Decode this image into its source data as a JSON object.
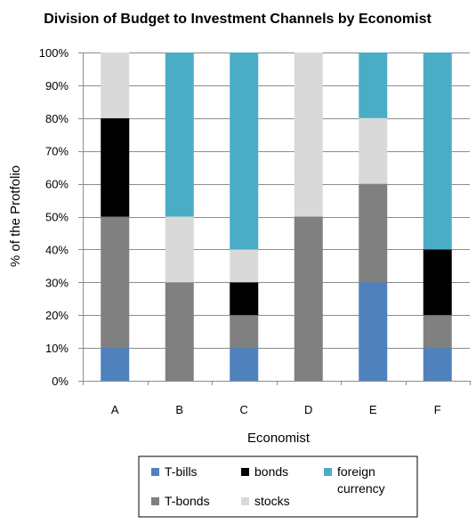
{
  "chart_data": {
    "type": "bar",
    "stacked": true,
    "title": "Division of Budget to Investment Channels by Economist",
    "xlabel": "Economist",
    "ylabel": "% of the Protfolio",
    "ylim": [
      0,
      100
    ],
    "yticks": [
      "0%",
      "10%",
      "20%",
      "30%",
      "40%",
      "50%",
      "60%",
      "70%",
      "80%",
      "90%",
      "100%"
    ],
    "grid": true,
    "legend_position": "bottom",
    "categories": [
      "A",
      "B",
      "C",
      "D",
      "E",
      "F"
    ],
    "series": [
      {
        "name": "T-bills",
        "color": "#4F81BD",
        "values": [
          10,
          0,
          10,
          0,
          30,
          10
        ]
      },
      {
        "name": "T-bonds",
        "color": "#808080",
        "values": [
          40,
          30,
          10,
          50,
          30,
          10
        ]
      },
      {
        "name": "bonds",
        "color": "#000000",
        "values": [
          30,
          0,
          10,
          0,
          0,
          20
        ]
      },
      {
        "name": "stocks",
        "color": "#D9D9D9",
        "values": [
          20,
          20,
          10,
          50,
          20,
          0
        ]
      },
      {
        "name": "foreign currency",
        "color": "#4BACC6",
        "values": [
          0,
          50,
          60,
          0,
          20,
          60
        ]
      }
    ],
    "legend": [
      {
        "series": 0,
        "lines": [
          "T-bills"
        ]
      },
      {
        "series": 2,
        "lines": [
          "bonds"
        ]
      },
      {
        "series": 4,
        "lines": [
          "foreign",
          "currency"
        ]
      },
      {
        "series": 1,
        "lines": [
          "T-bonds"
        ]
      },
      {
        "series": 3,
        "lines": [
          "stocks"
        ]
      }
    ]
  }
}
